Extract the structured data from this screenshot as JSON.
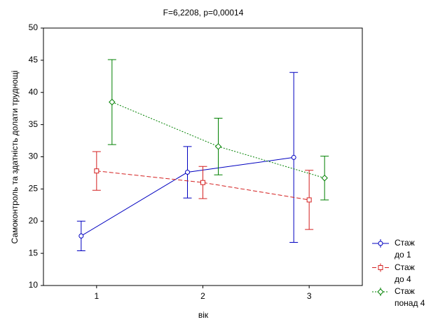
{
  "chart_data": {
    "type": "line",
    "title": "F=6,2208, p=0,00014",
    "x_label": "вік",
    "y_label": "Самоконтроль та здатність долати труднощі",
    "categories": [
      "1",
      "2",
      "3"
    ],
    "series": [
      {
        "name": "Стаж до 1",
        "color": "#0000c0",
        "dash": "solid",
        "marker": "circle",
        "values": [
          17.7,
          27.6,
          29.9
        ],
        "errors": [
          2.3,
          4.0,
          13.2
        ]
      },
      {
        "name": "Стаж до 4",
        "color": "#d42020",
        "dash": "dashed",
        "marker": "square",
        "values": [
          27.8,
          26.0,
          23.3
        ],
        "errors": [
          3.0,
          2.5,
          4.6
        ]
      },
      {
        "name": "Стаж понад 4",
        "color": "#008000",
        "dash": "dotted",
        "marker": "diamond",
        "values": [
          38.5,
          31.6,
          26.7
        ],
        "errors": [
          6.6,
          4.4,
          3.4
        ]
      }
    ],
    "ylim": [
      10,
      50
    ],
    "yticks": [
      10,
      15,
      20,
      25,
      30,
      35,
      40,
      45,
      50
    ],
    "legend": "right"
  }
}
